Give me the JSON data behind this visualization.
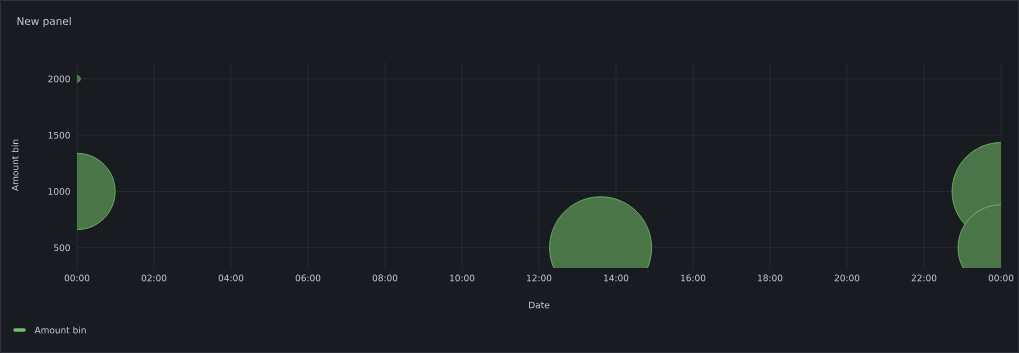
{
  "chart_data": {
    "type": "bubble",
    "title": "New panel",
    "xlabel": "Date",
    "ylabel": "Amount bin",
    "xlim": [
      0,
      24
    ],
    "xticks": [
      {
        "value": 0,
        "label": "00:00"
      },
      {
        "value": 2,
        "label": "02:00"
      },
      {
        "value": 4,
        "label": "04:00"
      },
      {
        "value": 6,
        "label": "06:00"
      },
      {
        "value": 8,
        "label": "08:00"
      },
      {
        "value": 10,
        "label": "10:00"
      },
      {
        "value": 12,
        "label": "12:00"
      },
      {
        "value": 14,
        "label": "14:00"
      },
      {
        "value": 16,
        "label": "16:00"
      },
      {
        "value": 18,
        "label": "18:00"
      },
      {
        "value": 20,
        "label": "20:00"
      },
      {
        "value": 22,
        "label": "22:00"
      },
      {
        "value": 24,
        "label": "00:00"
      }
    ],
    "ylim": [
      320,
      2150
    ],
    "yticks": [
      500,
      1000,
      1500,
      2000
    ],
    "grid": true,
    "legend": "bottom left",
    "series": [
      {
        "name": "Amount bin",
        "color": "#73bf69",
        "x": [
          0,
          0,
          13.6,
          24,
          24
        ],
        "values": [
          2000,
          1000,
          500,
          1000,
          500
        ],
        "sizes": [
          0.004,
          0.56,
          1,
          0.92,
          0.71
        ]
      }
    ]
  }
}
